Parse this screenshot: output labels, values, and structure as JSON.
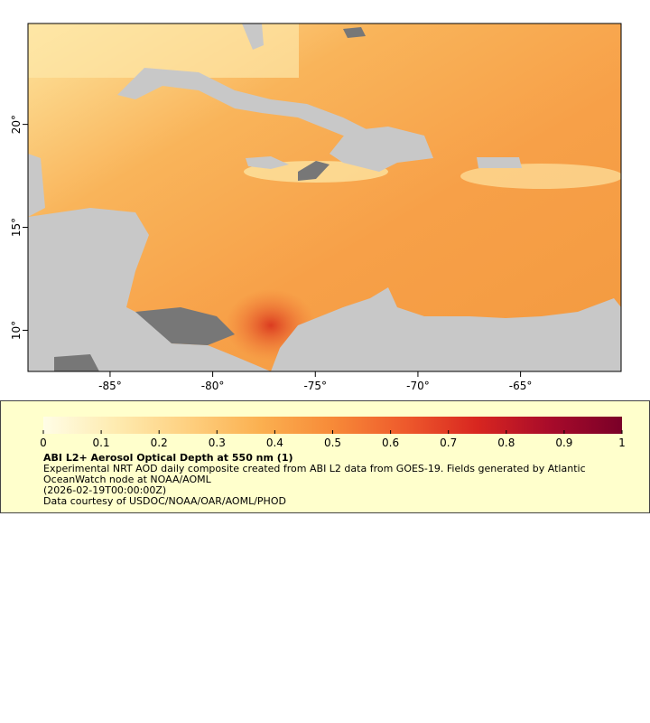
{
  "map": {
    "xlim": [
      -89,
      -60.1
    ],
    "ylim": [
      8.0,
      24.9
    ],
    "xticks": [
      {
        "value": -85,
        "label": "-85°"
      },
      {
        "value": -80,
        "label": "-80°"
      },
      {
        "value": -75,
        "label": "-75°"
      },
      {
        "value": -70,
        "label": "-70°"
      },
      {
        "value": -65,
        "label": "-65°"
      }
    ],
    "yticks": [
      {
        "value": 10,
        "label": "10°"
      },
      {
        "value": 15,
        "label": "15°"
      },
      {
        "value": 20,
        "label": "20°"
      }
    ]
  },
  "colorbar": {
    "title": "ABI L2+ Aerosol Optical Depth at 550 nm (1)",
    "range": [
      0,
      1
    ],
    "ticks": [
      0,
      0.1,
      0.2,
      0.3,
      0.4,
      0.5,
      0.6,
      0.7,
      0.8,
      0.9,
      1
    ],
    "colors": [
      "#fffde6",
      "#feebb0",
      "#fed080",
      "#fbb050",
      "#f78a38",
      "#ee5a2c",
      "#d82620",
      "#a80b2a",
      "#7a0028"
    ],
    "description": [
      "Experimental NRT AOD daily composite created from ABI L2 data from GOES-19. Fields generated by Atlantic",
      "OceanWatch node at NOAA/AOML"
    ],
    "date": "(2026-02-19T00:00:00Z)",
    "credit": "Data courtesy of USDOC/NOAA/OAR/AOML/PHOD"
  }
}
